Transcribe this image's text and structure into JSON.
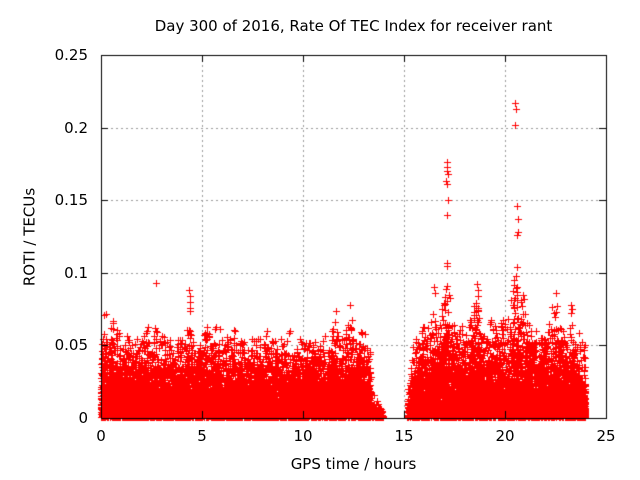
{
  "chart_data": {
    "type": "scatter",
    "title": "Day 300 of 2016, Rate Of TEC Index for receiver rant",
    "xlabel": "GPS time / hours",
    "ylabel": "ROTI / TECUs",
    "xlim": [
      0,
      25
    ],
    "ylim": [
      0,
      0.25
    ],
    "xticks": [
      0,
      5,
      10,
      15,
      20,
      25
    ],
    "xtick_labels": [
      "0",
      "5",
      "10",
      "15",
      "20",
      "25"
    ],
    "yticks": [
      0,
      0.05,
      0.1,
      0.15,
      0.2,
      0.25
    ],
    "ytick_labels": [
      "0",
      "0.05",
      "0.1",
      "0.15",
      "0.2",
      "0.25"
    ],
    "grid": true,
    "legend": false,
    "marker": {
      "shape": "plus",
      "size": 7,
      "color": "#ff0000"
    },
    "colors": {
      "grid": "#9b9b9b",
      "axis": "#000000",
      "background": "#ffffff",
      "text": "#000000"
    },
    "data_gap_hours": [
      13.4,
      15.2
    ],
    "y_exp_scale": 0.3,
    "band_seed": 300,
    "band_segments": [
      {
        "t_range": [
          0.0,
          13.35
        ],
        "points_per_hour": 700,
        "envelope": [
          [
            0.0,
            0.06
          ],
          [
            0.15,
            0.077
          ],
          [
            0.35,
            0.066
          ],
          [
            0.5,
            0.074
          ],
          [
            0.7,
            0.058
          ],
          [
            0.9,
            0.064
          ],
          [
            1.1,
            0.05
          ],
          [
            1.3,
            0.057
          ],
          [
            1.5,
            0.048
          ],
          [
            1.7,
            0.061
          ],
          [
            1.9,
            0.052
          ],
          [
            2.1,
            0.058
          ],
          [
            2.3,
            0.066
          ],
          [
            2.5,
            0.052
          ],
          [
            2.7,
            0.067
          ],
          [
            2.9,
            0.055
          ],
          [
            3.1,
            0.063
          ],
          [
            3.3,
            0.05
          ],
          [
            3.5,
            0.057
          ],
          [
            3.7,
            0.048
          ],
          [
            3.9,
            0.06
          ],
          [
            4.1,
            0.052
          ],
          [
            4.3,
            0.065
          ],
          [
            4.45,
            0.071
          ],
          [
            4.6,
            0.052
          ],
          [
            4.8,
            0.057
          ],
          [
            5.0,
            0.05
          ],
          [
            5.2,
            0.068
          ],
          [
            5.4,
            0.056
          ],
          [
            5.6,
            0.061
          ],
          [
            5.8,
            0.067
          ],
          [
            6.0,
            0.052
          ],
          [
            6.2,
            0.06
          ],
          [
            6.4,
            0.055
          ],
          [
            6.6,
            0.062
          ],
          [
            6.8,
            0.05
          ],
          [
            7.0,
            0.057
          ],
          [
            7.2,
            0.048
          ],
          [
            7.4,
            0.061
          ],
          [
            7.6,
            0.052
          ],
          [
            7.8,
            0.057
          ],
          [
            8.0,
            0.05
          ],
          [
            8.2,
            0.061
          ],
          [
            8.4,
            0.053
          ],
          [
            8.6,
            0.057
          ],
          [
            8.8,
            0.048
          ],
          [
            9.0,
            0.066
          ],
          [
            9.2,
            0.055
          ],
          [
            9.4,
            0.062
          ],
          [
            9.6,
            0.05
          ],
          [
            9.8,
            0.057
          ],
          [
            10.0,
            0.052
          ],
          [
            10.2,
            0.063
          ],
          [
            10.4,
            0.05
          ],
          [
            10.6,
            0.057
          ],
          [
            10.8,
            0.048
          ],
          [
            11.0,
            0.059
          ],
          [
            11.2,
            0.052
          ],
          [
            11.4,
            0.057
          ],
          [
            11.6,
            0.072
          ],
          [
            11.8,
            0.055
          ],
          [
            12.0,
            0.062
          ],
          [
            12.2,
            0.07
          ],
          [
            12.35,
            0.078
          ],
          [
            12.5,
            0.056
          ],
          [
            12.7,
            0.052
          ],
          [
            12.9,
            0.066
          ],
          [
            13.1,
            0.056
          ],
          [
            13.35,
            0.05
          ]
        ]
      },
      {
        "t_range": [
          13.35,
          13.95
        ],
        "points_per_hour": 150,
        "envelope": [
          [
            13.35,
            0.028
          ],
          [
            13.55,
            0.016
          ],
          [
            13.75,
            0.011
          ],
          [
            13.95,
            0.008
          ]
        ]
      },
      {
        "t_range": [
          15.17,
          15.45
        ],
        "points_per_hour": 350,
        "envelope": [
          [
            15.17,
            0.02
          ],
          [
            15.45,
            0.048
          ]
        ]
      },
      {
        "t_range": [
          15.45,
          23.98
        ],
        "points_per_hour": 700,
        "envelope": [
          [
            15.45,
            0.05
          ],
          [
            15.6,
            0.055
          ],
          [
            15.75,
            0.05
          ],
          [
            15.9,
            0.072
          ],
          [
            16.05,
            0.058
          ],
          [
            16.2,
            0.064
          ],
          [
            16.35,
            0.07
          ],
          [
            16.5,
            0.088
          ],
          [
            16.65,
            0.068
          ],
          [
            16.8,
            0.08
          ],
          [
            16.95,
            0.088
          ],
          [
            17.1,
            0.092
          ],
          [
            17.25,
            0.085
          ],
          [
            17.4,
            0.07
          ],
          [
            17.55,
            0.062
          ],
          [
            17.7,
            0.058
          ],
          [
            17.85,
            0.065
          ],
          [
            18.0,
            0.058
          ],
          [
            18.15,
            0.066
          ],
          [
            18.3,
            0.074
          ],
          [
            18.5,
            0.082
          ],
          [
            18.65,
            0.09
          ],
          [
            18.8,
            0.064
          ],
          [
            19.0,
            0.059
          ],
          [
            19.2,
            0.064
          ],
          [
            19.4,
            0.07
          ],
          [
            19.6,
            0.06
          ],
          [
            19.8,
            0.066
          ],
          [
            20.0,
            0.07
          ],
          [
            20.2,
            0.078
          ],
          [
            20.4,
            0.09
          ],
          [
            20.55,
            0.096
          ],
          [
            20.7,
            0.092
          ],
          [
            20.85,
            0.086
          ],
          [
            21.0,
            0.08
          ],
          [
            21.2,
            0.07
          ],
          [
            21.4,
            0.064
          ],
          [
            21.6,
            0.06
          ],
          [
            21.8,
            0.062
          ],
          [
            22.0,
            0.066
          ],
          [
            22.2,
            0.07
          ],
          [
            22.4,
            0.08
          ],
          [
            22.55,
            0.082
          ],
          [
            22.7,
            0.068
          ],
          [
            22.9,
            0.06
          ],
          [
            23.1,
            0.056
          ],
          [
            23.25,
            0.064
          ],
          [
            23.4,
            0.058
          ],
          [
            23.6,
            0.06
          ],
          [
            23.8,
            0.055
          ],
          [
            23.98,
            0.05
          ]
        ]
      }
    ],
    "outliers": [
      [
        2.73,
        0.093
      ],
      [
        4.38,
        0.088
      ],
      [
        4.4,
        0.084
      ],
      [
        4.42,
        0.08
      ],
      [
        4.41,
        0.076
      ],
      [
        4.39,
        0.074
      ],
      [
        11.62,
        0.074
      ],
      [
        12.33,
        0.078
      ],
      [
        16.5,
        0.09
      ],
      [
        16.53,
        0.086
      ],
      [
        17.12,
        0.176
      ],
      [
        17.15,
        0.173
      ],
      [
        17.13,
        0.17
      ],
      [
        17.17,
        0.168
      ],
      [
        17.1,
        0.163
      ],
      [
        17.14,
        0.161
      ],
      [
        17.16,
        0.15
      ],
      [
        17.12,
        0.14
      ],
      [
        17.13,
        0.107
      ],
      [
        17.15,
        0.105
      ],
      [
        17.11,
        0.091
      ],
      [
        18.62,
        0.092
      ],
      [
        18.66,
        0.088
      ],
      [
        20.48,
        0.217
      ],
      [
        20.52,
        0.213
      ],
      [
        20.5,
        0.202
      ],
      [
        20.6,
        0.146
      ],
      [
        20.62,
        0.137
      ],
      [
        20.63,
        0.128
      ],
      [
        20.61,
        0.126
      ],
      [
        20.58,
        0.104
      ],
      [
        20.55,
        0.098
      ],
      [
        20.45,
        0.095
      ],
      [
        22.5,
        0.086
      ],
      [
        23.28,
        0.078
      ],
      [
        23.3,
        0.075
      ],
      [
        23.27,
        0.072
      ],
      [
        23.32,
        0.064
      ]
    ]
  }
}
